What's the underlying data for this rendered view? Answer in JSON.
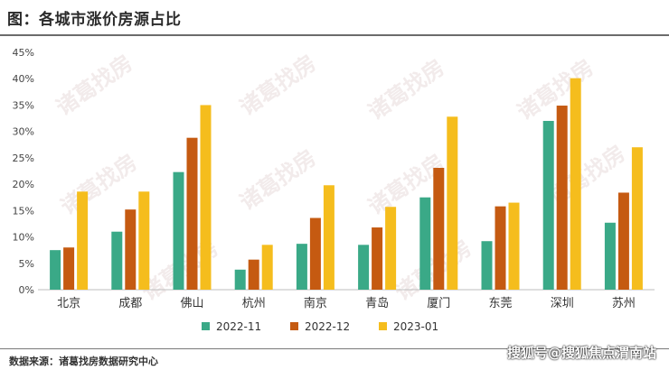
{
  "title": "图：各城市涨价房源占比",
  "source": "数据来源：诸葛找房数据研究中心",
  "credit": "搜狐号@搜狐焦点渭南站",
  "watermark": "诸葛找房",
  "chart_data": {
    "type": "bar",
    "categories": [
      "北京",
      "成都",
      "佛山",
      "杭州",
      "南京",
      "青岛",
      "厦门",
      "东莞",
      "深圳",
      "苏州"
    ],
    "series": [
      {
        "name": "2022-11",
        "color": "#3aa987",
        "values": [
          7.5,
          11,
          22.3,
          3.8,
          8.7,
          8.5,
          17.5,
          9.2,
          32,
          12.7
        ]
      },
      {
        "name": "2022-12",
        "color": "#c55a11",
        "values": [
          8,
          15.2,
          28.8,
          5.7,
          13.6,
          11.8,
          23.1,
          15.8,
          34.9,
          18.4
        ]
      },
      {
        "name": "2023-01",
        "color": "#f5bd1d",
        "values": [
          18.6,
          18.6,
          35,
          8.5,
          19.8,
          15.7,
          32.8,
          16.5,
          40.1,
          27
        ]
      }
    ],
    "ylim": [
      0,
      45
    ],
    "ytick_step": 5,
    "ytick_suffix": "%",
    "xlabel": "",
    "ylabel": "",
    "legend": "bottom-center",
    "grid": false
  }
}
